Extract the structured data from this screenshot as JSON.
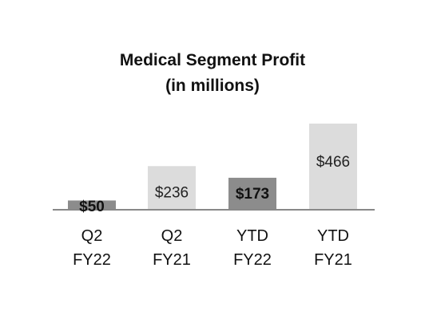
{
  "chart_data": {
    "type": "bar",
    "title": [
      "Medical Segment Profit",
      "(in millions)"
    ],
    "categories": [
      [
        "Q2",
        "FY22"
      ],
      [
        "Q2",
        "FY21"
      ],
      [
        "YTD",
        "FY22"
      ],
      [
        "YTD",
        "FY21"
      ]
    ],
    "values": [
      50,
      236,
      173,
      466
    ],
    "value_labels": [
      "$50",
      "$236",
      "$173",
      "$466"
    ],
    "bar_colors": [
      "#8c8c8c",
      "#dcdcdc",
      "#8c8c8c",
      "#dcdcdc"
    ],
    "label_colors": [
      "#111111",
      "#222222",
      "#111111",
      "#222222"
    ],
    "label_bold": [
      true,
      false,
      true,
      false
    ],
    "axis_color": "#888888",
    "xlabel": "",
    "ylabel": "",
    "grid": false,
    "legend": "none"
  }
}
